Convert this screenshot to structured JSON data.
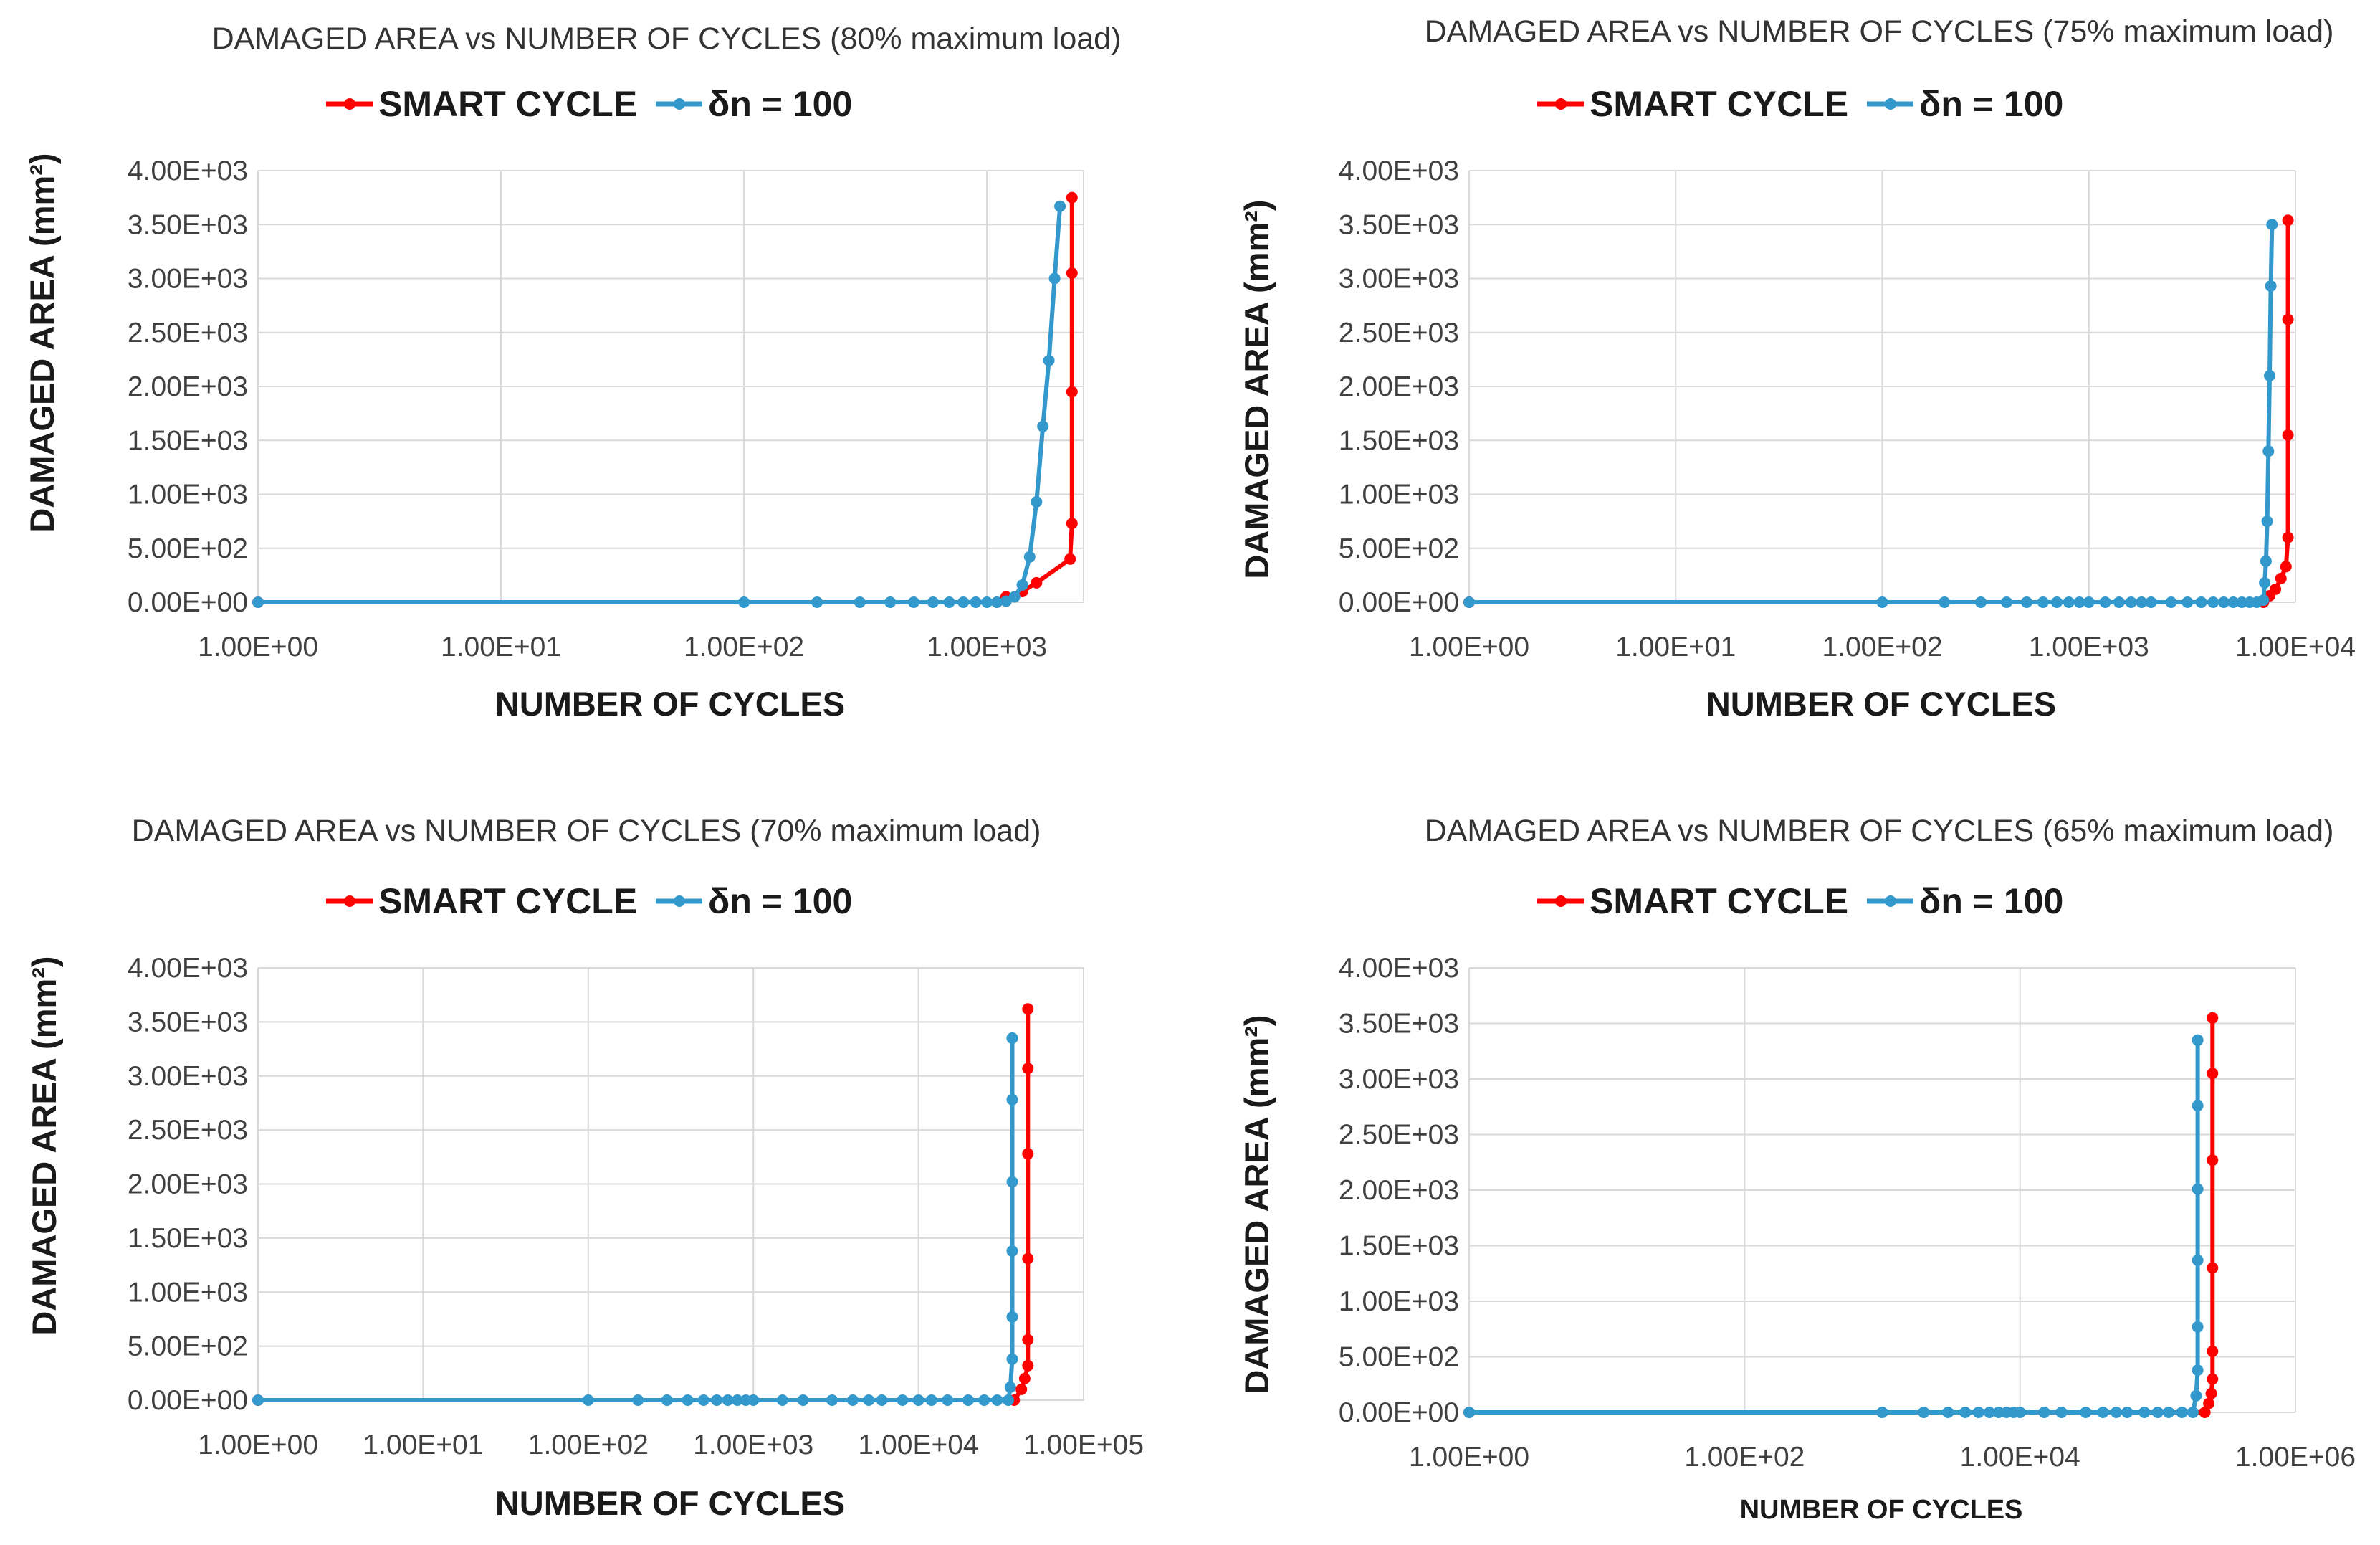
{
  "colors": {
    "smart": "#ff0000",
    "dn": "#3399cc",
    "grid": "#d9d9d9",
    "text": "#404040"
  },
  "chart_data": [
    {
      "type": "line",
      "title": "DAMAGED AREA vs NUMBER OF CYCLES (80% maximum load)",
      "xlabel": "NUMBER OF CYCLES",
      "ylabel": "DAMAGED AREA (mm²)",
      "x_scale": "log",
      "xlim": [
        1,
        2500
      ],
      "ylim": [
        0,
        4000
      ],
      "x_ticks": [
        1,
        10,
        100,
        1000
      ],
      "x_tick_labels": [
        "1.00E+00",
        "1.00E+01",
        "1.00E+02",
        "1.00E+03"
      ],
      "y_ticks": [
        0,
        500,
        1000,
        1500,
        2000,
        2500,
        3000,
        3500,
        4000
      ],
      "y_tick_labels": [
        "0.00E+00",
        "5.00E+02",
        "1.00E+03",
        "1.50E+03",
        "2.00E+03",
        "2.50E+03",
        "3.00E+03",
        "3.50E+03",
        "4.00E+03"
      ],
      "grid": true,
      "legend_position": "top",
      "series": [
        {
          "name": "SMART CYCLE",
          "color": "#ff0000",
          "x": [
            1,
            1100,
            1200,
            1400,
            1600,
            2200,
            2240,
            2240,
            2240,
            2240
          ],
          "y": [
            0,
            0,
            50,
            100,
            180,
            400,
            730,
            1950,
            3050,
            3750
          ]
        },
        {
          "name": "δn = 100",
          "color": "#3399cc",
          "x": [
            1,
            100,
            200,
            300,
            400,
            500,
            600,
            700,
            800,
            900,
            1000,
            1100,
            1200,
            1300,
            1400,
            1500,
            1600,
            1700,
            1800,
            1900,
            2000
          ],
          "y": [
            0,
            0,
            0,
            0,
            0,
            0,
            0,
            0,
            0,
            0,
            0,
            0,
            10,
            50,
            160,
            420,
            930,
            1630,
            2240,
            3000,
            3670
          ]
        }
      ]
    },
    {
      "type": "line",
      "title": "DAMAGED AREA vs NUMBER OF CYCLES (75% maximum load)",
      "xlabel": "NUMBER OF CYCLES",
      "ylabel": "DAMAGED AREA (mm²)",
      "x_scale": "log",
      "xlim": [
        1,
        10000
      ],
      "ylim": [
        0,
        4000
      ],
      "x_ticks": [
        1,
        10,
        100,
        1000,
        10000
      ],
      "x_tick_labels": [
        "1.00E+00",
        "1.00E+01",
        "1.00E+02",
        "1.00E+03",
        "1.00E+04"
      ],
      "y_ticks": [
        0,
        500,
        1000,
        1500,
        2000,
        2500,
        3000,
        3500,
        4000
      ],
      "y_tick_labels": [
        "0.00E+00",
        "5.00E+02",
        "1.00E+03",
        "1.50E+03",
        "2.00E+03",
        "2.50E+03",
        "3.00E+03",
        "3.50E+03",
        "4.00E+03"
      ],
      "grid": true,
      "legend_position": "top",
      "series": [
        {
          "name": "SMART CYCLE",
          "color": "#ff0000",
          "x": [
            1,
            7000,
            7500,
            8000,
            8500,
            9000,
            9200,
            9200,
            9200,
            9200
          ],
          "y": [
            0,
            0,
            60,
            120,
            220,
            330,
            600,
            1550,
            2620,
            3540
          ]
        },
        {
          "name": "δn = 100",
          "color": "#3399cc",
          "x": [
            1,
            100,
            200,
            300,
            400,
            500,
            600,
            700,
            800,
            900,
            1000,
            1200,
            1400,
            1600,
            1800,
            2000,
            2500,
            3000,
            3500,
            4000,
            4500,
            5000,
            5500,
            6000,
            6500,
            7000,
            7100,
            7200,
            7300,
            7400,
            7500,
            7600,
            7700
          ],
          "y": [
            0,
            0,
            0,
            0,
            0,
            0,
            0,
            0,
            0,
            0,
            0,
            0,
            0,
            0,
            0,
            0,
            0,
            0,
            0,
            0,
            0,
            0,
            0,
            0,
            0,
            20,
            180,
            380,
            750,
            1400,
            2100,
            2930,
            3500
          ]
        }
      ]
    },
    {
      "type": "line",
      "title": "DAMAGED AREA vs NUMBER OF CYCLES (70% maximum load)",
      "xlabel": "NUMBER OF CYCLES",
      "ylabel": "DAMAGED AREA (mm²)",
      "x_scale": "log",
      "xlim": [
        1,
        100000
      ],
      "ylim": [
        0,
        4000
      ],
      "x_ticks": [
        1,
        10,
        100,
        1000,
        10000,
        100000
      ],
      "x_tick_labels": [
        "1.00E+00",
        "1.00E+01",
        "1.00E+02",
        "1.00E+03",
        "1.00E+04",
        "1.00E+05"
      ],
      "y_ticks": [
        0,
        500,
        1000,
        1500,
        2000,
        2500,
        3000,
        3500,
        4000
      ],
      "y_tick_labels": [
        "0.00E+00",
        "5.00E+02",
        "1.00E+03",
        "1.50E+03",
        "2.00E+03",
        "2.50E+03",
        "3.00E+03",
        "3.50E+03",
        "4.00E+03"
      ],
      "grid": true,
      "legend_position": "top",
      "series": [
        {
          "name": "SMART CYCLE",
          "color": "#ff0000",
          "x": [
            1,
            38000,
            42000,
            44000,
            46000,
            46000,
            46000,
            46000,
            46000,
            46000
          ],
          "y": [
            0,
            0,
            100,
            200,
            320,
            560,
            1310,
            2280,
            3070,
            3620
          ]
        },
        {
          "name": "δn = 100",
          "color": "#3399cc",
          "x": [
            1,
            100,
            200,
            300,
            400,
            500,
            600,
            700,
            800,
            900,
            1000,
            1500,
            2000,
            3000,
            4000,
            5000,
            6000,
            8000,
            10000,
            12000,
            15000,
            20000,
            25000,
            30000,
            35000,
            36000,
            37000,
            37000,
            37000,
            37000,
            37000,
            37000,
            37000
          ],
          "y": [
            0,
            0,
            0,
            0,
            0,
            0,
            0,
            0,
            0,
            0,
            0,
            0,
            0,
            0,
            0,
            0,
            0,
            0,
            0,
            0,
            0,
            0,
            0,
            0,
            0,
            120,
            380,
            770,
            1380,
            2020,
            2780,
            3350,
            3350
          ]
        }
      ]
    },
    {
      "type": "line",
      "title": "DAMAGED AREA vs NUMBER OF CYCLES (65% maximum load)",
      "xlabel": "NUMBER OF CYCLES",
      "ylabel": "DAMAGED AREA (mm²)",
      "x_scale": "log",
      "xlim": [
        1,
        1000000
      ],
      "ylim": [
        0,
        4000
      ],
      "x_ticks": [
        1,
        100,
        10000,
        1000000
      ],
      "x_tick_labels": [
        "1.00E+00",
        "1.00E+02",
        "1.00E+04",
        "1.00E+06"
      ],
      "y_ticks": [
        0,
        500,
        1000,
        1500,
        2000,
        2500,
        3000,
        3500,
        4000
      ],
      "y_tick_labels": [
        "0.00E+00",
        "5.00E+02",
        "1.00E+03",
        "1.50E+03",
        "2.00E+03",
        "2.50E+03",
        "3.00E+03",
        "3.50E+03",
        "4.00E+03"
      ],
      "grid": true,
      "legend_position": "top",
      "series": [
        {
          "name": "SMART CYCLE",
          "color": "#ff0000",
          "x": [
            1,
            220000,
            235000,
            245000,
            250000,
            250000,
            250000,
            250000,
            250000,
            250000
          ],
          "y": [
            0,
            0,
            80,
            170,
            300,
            550,
            1300,
            2270,
            3050,
            3550
          ]
        },
        {
          "name": "δn = 100",
          "color": "#3399cc",
          "x": [
            1,
            1000,
            2000,
            3000,
            4000,
            5000,
            6000,
            7000,
            8000,
            9000,
            10000,
            15000,
            20000,
            30000,
            40000,
            50000,
            60000,
            80000,
            100000,
            120000,
            150000,
            180000,
            190000,
            195000,
            195000,
            195000,
            195000,
            195000,
            195000,
            195000
          ],
          "y": [
            0,
            0,
            0,
            0,
            0,
            0,
            0,
            0,
            0,
            0,
            0,
            0,
            0,
            0,
            0,
            0,
            0,
            0,
            0,
            0,
            0,
            0,
            150,
            380,
            770,
            1370,
            2010,
            2760,
            3350,
            3350
          ]
        }
      ]
    }
  ]
}
